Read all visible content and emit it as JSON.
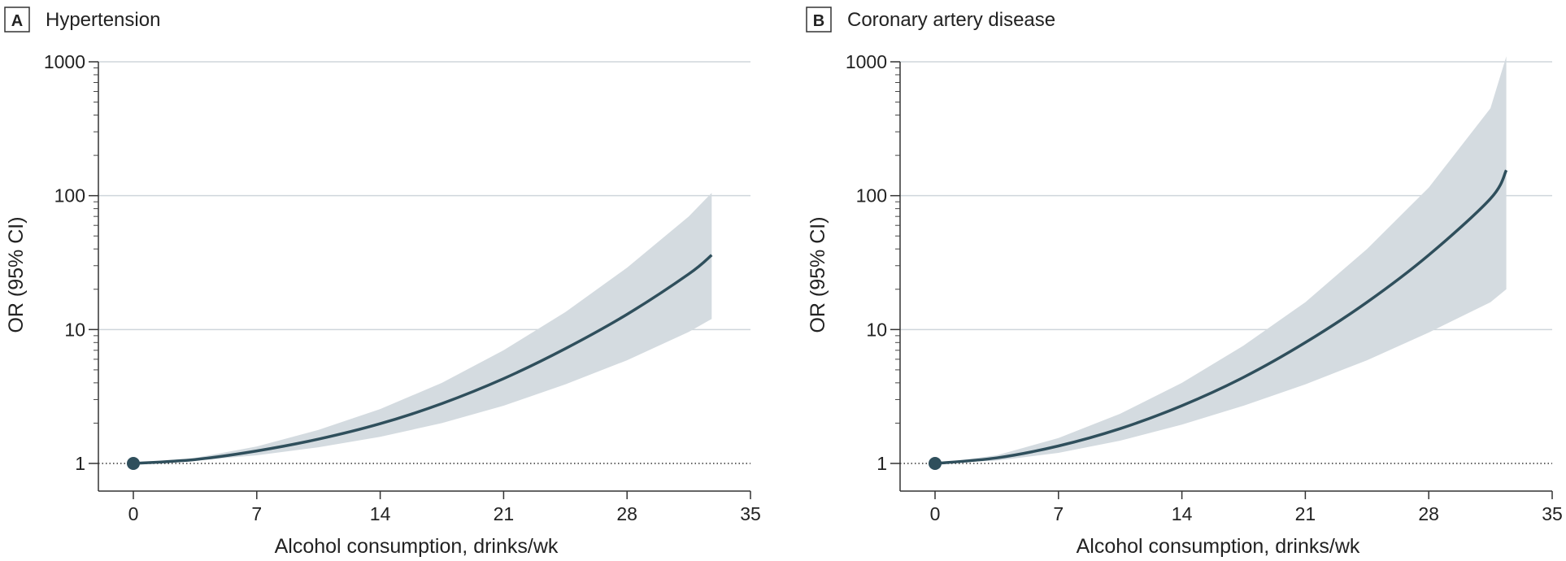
{
  "chart_data": [
    {
      "type": "line",
      "panel_letter": "A",
      "title": "Hypertension",
      "xlabel": "Alcohol consumption, drinks/wk",
      "ylabel": "OR (95% CI)",
      "xlim": [
        -2,
        35
      ],
      "ylim": [
        0.6,
        1000
      ],
      "yscale": "log",
      "xticks": [
        0,
        7,
        14,
        21,
        28,
        35
      ],
      "yticks": [
        1,
        10,
        100,
        1000
      ],
      "reference_y": 1,
      "grid": true,
      "series": [
        {
          "x": [
            0,
            3.5,
            7,
            10.5,
            14,
            17.5,
            21,
            24.5,
            28,
            31.5,
            32.8
          ],
          "y": [
            1,
            1.07,
            1.24,
            1.52,
            1.98,
            2.8,
            4.3,
            7.2,
            13,
            26,
            36
          ],
          "ci_lower": [
            1,
            1.05,
            1.15,
            1.32,
            1.58,
            2.0,
            2.7,
            3.9,
            5.9,
            9.6,
            12
          ],
          "ci_upper": [
            1,
            1.1,
            1.34,
            1.78,
            2.55,
            4.0,
            7.0,
            13.5,
            29,
            70,
            105
          ]
        }
      ],
      "marker": {
        "x": 0,
        "y": 1
      }
    },
    {
      "type": "line",
      "panel_letter": "B",
      "title": "Coronary artery disease",
      "xlabel": "Alcohol consumption, drinks/wk",
      "ylabel": "OR (95% CI)",
      "xlim": [
        -2,
        35
      ],
      "ylim": [
        0.6,
        1000
      ],
      "yscale": "log",
      "xticks": [
        0,
        7,
        14,
        21,
        28,
        35
      ],
      "yticks": [
        1,
        10,
        100,
        1000
      ],
      "reference_y": 1,
      "grid": true,
      "series": [
        {
          "x": [
            0,
            3.5,
            7,
            10.5,
            14,
            17.5,
            21,
            24.5,
            28,
            31.5,
            32.4
          ],
          "y": [
            1,
            1.1,
            1.35,
            1.82,
            2.7,
            4.4,
            8.0,
            16,
            36,
            95,
            155
          ],
          "ci_lower": [
            1,
            1.05,
            1.2,
            1.48,
            1.95,
            2.7,
            3.9,
            5.9,
            9.5,
            16,
            20
          ],
          "ci_upper": [
            1,
            1.15,
            1.55,
            2.35,
            4.0,
            7.6,
            16,
            40,
            115,
            450,
            1100
          ]
        }
      ],
      "marker": {
        "x": 0,
        "y": 1
      }
    }
  ],
  "colors": {
    "curve": "#2f4f5c",
    "band": "#d4dbe0",
    "marker": "#2f4f5c"
  }
}
